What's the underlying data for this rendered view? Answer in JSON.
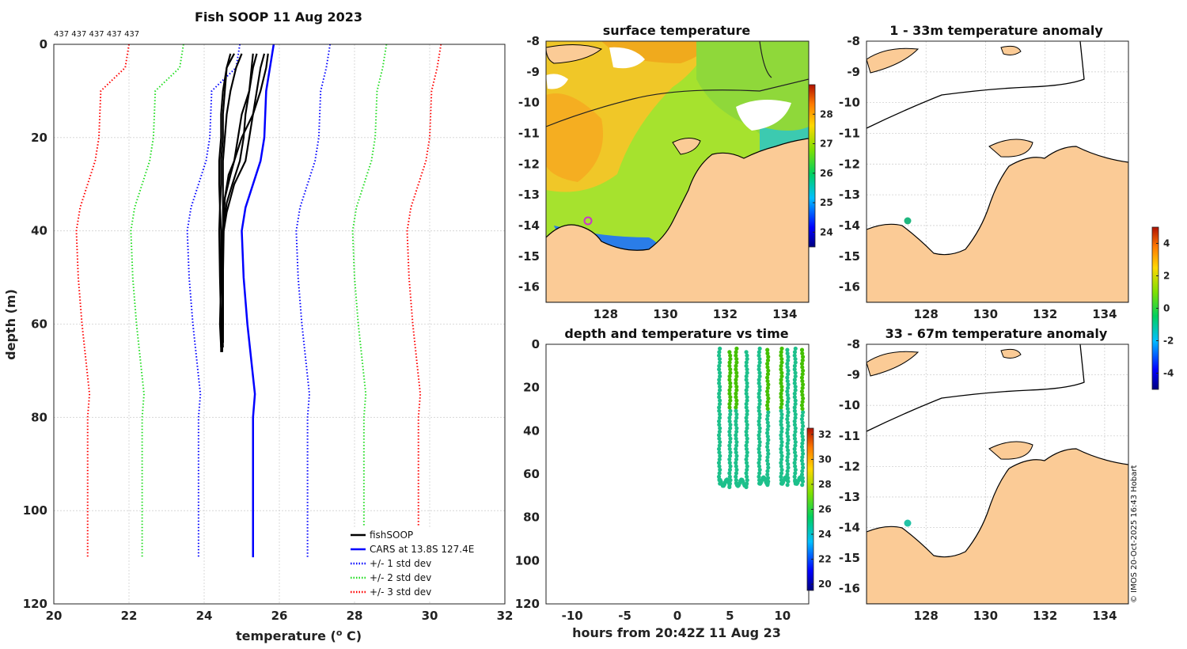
{
  "chart_data": [
    {
      "id": "profile",
      "type": "line",
      "title": "Fish SOOP 11 Aug 2023",
      "top_annotation": "437 437 437 437 437",
      "xlabel": "temperature (",
      "xlabel_sup": "o",
      "xlabel_tail": " C)",
      "ylabel": "depth (m)",
      "xlim": [
        20,
        32
      ],
      "ylim": [
        0,
        120
      ],
      "xticks": [
        20,
        22,
        24,
        26,
        28,
        30,
        32
      ],
      "yticks": [
        0,
        20,
        40,
        60,
        80,
        100,
        120
      ],
      "legend_position": "bottom-right",
      "legend": [
        {
          "label": "fishSOOP",
          "color": "#000000",
          "style": "solid"
        },
        {
          "label": "CARS at 13.8S 127.4E",
          "color": "#0000ff",
          "style": "solid"
        },
        {
          "label": "+/- 1 std dev",
          "color": "#0000ff",
          "style": "dotted"
        },
        {
          "label": "+/- 2 std dev",
          "color": "#22dd22",
          "style": "dotted"
        },
        {
          "label": "+/- 3 std dev",
          "color": "#ff0000",
          "style": "dotted"
        }
      ],
      "cars": {
        "depth": [
          0,
          5,
          10,
          20,
          25,
          30,
          35,
          40,
          50,
          60,
          75,
          80,
          110
        ],
        "temp": [
          25.85,
          25.75,
          25.65,
          25.6,
          25.5,
          25.3,
          25.1,
          25.0,
          25.05,
          25.15,
          25.35,
          25.3,
          25.3
        ]
      },
      "sd_offsets": {
        "1": 1.45,
        "2": 2.95,
        "3": 4.4
      },
      "fish_profiles": [
        {
          "depth": [
            2,
            5,
            10,
            15,
            20,
            25,
            30,
            35,
            40,
            50,
            60,
            65
          ],
          "temp": [
            24.8,
            24.6,
            24.5,
            24.45,
            24.45,
            24.4,
            24.4,
            24.42,
            24.45,
            24.45,
            24.42,
            24.45
          ]
        },
        {
          "depth": [
            2,
            5,
            10,
            15,
            20,
            25,
            30,
            35,
            40,
            50,
            60,
            66
          ],
          "temp": [
            25.0,
            24.85,
            24.7,
            24.6,
            24.55,
            24.5,
            24.5,
            24.5,
            24.5,
            24.5,
            24.5,
            24.48
          ]
        },
        {
          "depth": [
            2,
            6,
            10,
            15,
            20,
            25,
            28,
            33,
            40,
            50,
            60,
            64
          ],
          "temp": [
            25.3,
            25.25,
            25.2,
            25.0,
            24.9,
            24.8,
            24.7,
            24.55,
            24.5,
            24.5,
            24.5,
            24.5
          ]
        },
        {
          "depth": [
            2,
            5,
            10,
            15,
            20,
            25,
            30,
            36,
            40,
            50,
            60,
            65
          ],
          "temp": [
            25.6,
            25.5,
            25.4,
            25.3,
            25.2,
            25.1,
            24.8,
            24.6,
            24.52,
            24.5,
            24.48,
            24.5
          ]
        },
        {
          "depth": [
            2,
            5,
            10,
            15,
            20,
            25,
            28,
            33,
            40,
            50,
            60,
            63
          ],
          "temp": [
            25.7,
            25.65,
            25.5,
            25.3,
            25.0,
            24.8,
            24.65,
            24.55,
            24.5,
            24.5,
            24.5,
            24.45
          ]
        },
        {
          "depth": [
            2,
            5,
            10,
            15,
            20,
            25,
            30,
            35,
            40,
            50,
            60,
            66
          ],
          "temp": [
            24.7,
            24.6,
            24.55,
            24.5,
            24.5,
            24.45,
            24.45,
            24.42,
            24.4,
            24.42,
            24.45,
            24.45
          ]
        },
        {
          "depth": [
            2,
            5,
            10,
            15,
            20,
            25,
            30,
            34,
            40,
            50,
            60,
            64
          ],
          "temp": [
            25.4,
            25.3,
            25.2,
            25.1,
            25.05,
            24.95,
            24.75,
            24.6,
            24.5,
            24.48,
            24.5,
            24.5
          ]
        }
      ]
    },
    {
      "id": "surface",
      "type": "heatmap",
      "title": "surface temperature",
      "xticks": [
        128,
        130,
        132,
        134
      ],
      "yticks": [
        -8,
        -9,
        -10,
        -11,
        -12,
        -13,
        -14,
        -15,
        -16
      ],
      "xlim": [
        126,
        134.8
      ],
      "ylim": [
        -16.5,
        -8
      ],
      "colorbar_ticks": [
        24,
        25,
        26,
        27,
        28
      ],
      "colorbar_range": [
        23.5,
        29
      ]
    },
    {
      "id": "anom1",
      "type": "heatmap",
      "title": "1 - 33m temperature anomaly",
      "xticks": [
        128,
        130,
        132,
        134
      ],
      "yticks": [
        -8,
        -9,
        -10,
        -11,
        -12,
        -13,
        -14,
        -15,
        -16
      ],
      "xlim": [
        126,
        134.8
      ],
      "ylim": [
        -16.5,
        -8
      ],
      "marker": {
        "lon": 127.4,
        "lat": -13.8
      }
    },
    {
      "id": "anom2",
      "type": "heatmap",
      "title": "33 - 67m temperature anomaly",
      "xticks": [
        128,
        130,
        132,
        134
      ],
      "yticks": [
        -8,
        -9,
        -10,
        -11,
        -12,
        -13,
        -14,
        -15,
        -16
      ],
      "xlim": [
        126,
        134.8
      ],
      "ylim": [
        -16.5,
        -8
      ],
      "marker": {
        "lon": 127.4,
        "lat": -13.8
      }
    },
    {
      "id": "anom_colorbar",
      "type": "heatmap",
      "colorbar_ticks": [
        -4,
        -2,
        0,
        2,
        4
      ],
      "colorbar_range": [
        -5,
        5
      ]
    },
    {
      "id": "timeseries",
      "type": "scatter",
      "title": "depth and temperature vs time",
      "xlabel": "hours from 20:42Z 11 Aug 23",
      "xlim": [
        -12.5,
        12.5
      ],
      "ylim": [
        0,
        120
      ],
      "xticks": [
        -10,
        -5,
        0,
        5,
        10
      ],
      "yticks": [
        0,
        20,
        40,
        60,
        80,
        100,
        120
      ],
      "colorbar_ticks": [
        20,
        22,
        24,
        26,
        28,
        30,
        32
      ],
      "colorbar_range": [
        19.5,
        32.5
      ],
      "dives": [
        {
          "t_down": 4.0,
          "t_up": 5.0,
          "bottom": 66
        },
        {
          "t_down": 5.6,
          "t_up": 6.6,
          "bottom": 66
        },
        {
          "t_down": 7.8,
          "t_up": 8.6,
          "bottom": 65
        },
        {
          "t_down": 9.9,
          "t_up": 10.5,
          "bottom": 65
        },
        {
          "t_down": 11.2,
          "t_up": 11.9,
          "bottom": 65
        }
      ],
      "point_color": "#1dc08b",
      "warm_point_color": "#44c000"
    }
  ],
  "credit": "© IMOS 20-Oct-2025 16:43 Hobart",
  "colors": {
    "land": "#fbcb96",
    "coast": "#000000",
    "marker_green": "#1fb77f",
    "marker_magenta": "#cc33cc"
  }
}
